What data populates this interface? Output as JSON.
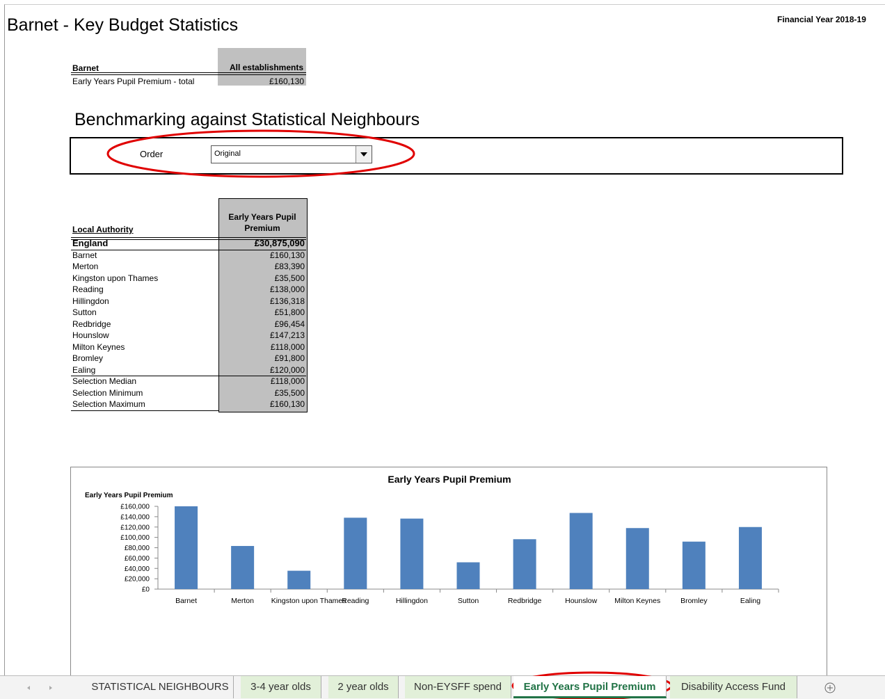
{
  "header": {
    "title": "Barnet - Key Budget Statistics",
    "financial_year": "Financial Year 2018-19"
  },
  "summary": {
    "row_header": "Barnet",
    "column_header": "All establishments",
    "row_label": "Early Years Pupil Premium - total",
    "value": "£160,130"
  },
  "benchmark": {
    "title": "Benchmarking against Statistical Neighbours",
    "order_label": "Order",
    "order_value": "Original"
  },
  "table": {
    "header": [
      "Local Authority",
      "Early Years Pupil Premium"
    ],
    "rows": [
      [
        "England",
        "£30,875,090"
      ],
      [
        "Barnet",
        "£160,130"
      ],
      [
        "Merton",
        "£83,390"
      ],
      [
        "Kingston upon Thames",
        "£35,500"
      ],
      [
        "Reading",
        "£138,000"
      ],
      [
        "Hillingdon",
        "£136,318"
      ],
      [
        "Sutton",
        "£51,800"
      ],
      [
        "Redbridge",
        "£96,454"
      ],
      [
        "Hounslow",
        "£147,213"
      ],
      [
        "Milton Keynes",
        "£118,000"
      ],
      [
        "Bromley",
        "£91,800"
      ],
      [
        "Ealing",
        "£120,000"
      ],
      [
        "Selection Median",
        "£118,000"
      ],
      [
        "Selection Minimum",
        "£35,500"
      ],
      [
        "Selection Maximum",
        "£160,130"
      ]
    ]
  },
  "chart_data": {
    "type": "bar",
    "title": "Early Years Pupil Premium",
    "y_label": "Early Years Pupil Premium",
    "categories": [
      "Barnet",
      "Merton",
      "Kingston upon Thames",
      "Reading",
      "Hillingdon",
      "Sutton",
      "Redbridge",
      "Hounslow",
      "Milton Keynes",
      "Bromley",
      "Ealing"
    ],
    "values": [
      160130,
      83390,
      35500,
      138000,
      136318,
      51800,
      96454,
      147213,
      118000,
      91800,
      120000
    ],
    "color": "#4f81bd",
    "ylim": [
      0,
      160000
    ],
    "yticks": [
      {
        "value": 0,
        "label": "£0"
      },
      {
        "value": 20000,
        "label": "£20,000"
      },
      {
        "value": 40000,
        "label": "£40,000"
      },
      {
        "value": 60000,
        "label": "£60,000"
      },
      {
        "value": 80000,
        "label": "£80,000"
      },
      {
        "value": 100000,
        "label": "£100,000"
      },
      {
        "value": 120000,
        "label": "£120,000"
      },
      {
        "value": 140000,
        "label": "£140,000"
      },
      {
        "value": 160000,
        "label": "£160,000"
      }
    ],
    "grid": false
  },
  "tabs": [
    "STATISTICAL NEIGHBOURS",
    "3-4 year olds",
    "2 year olds",
    "Non-EYSFF spend",
    "Early Years Pupil Premium",
    "Disability Access Fund"
  ]
}
